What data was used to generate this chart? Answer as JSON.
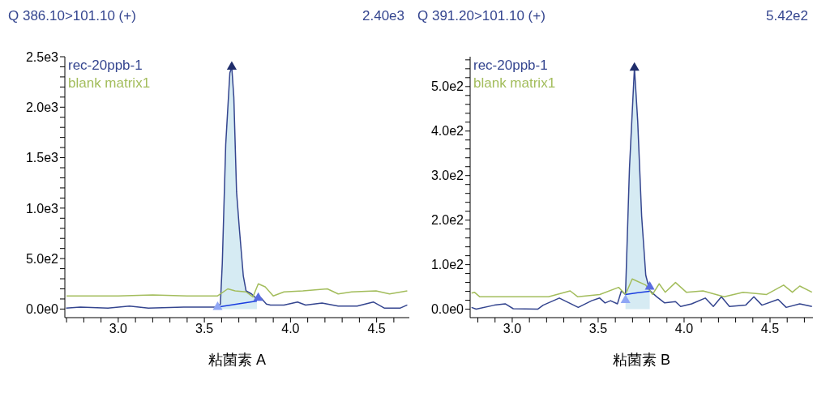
{
  "chart_data": [
    {
      "type": "line",
      "title": "Q 386.10>101.10 (+)",
      "annotations": [
        "2.40e3"
      ],
      "xlabel": "粘菌素 A",
      "xlim": [
        2.69,
        4.69
      ],
      "xticks": [
        {
          "value": 2.7,
          "label": null
        },
        {
          "value": 2.8,
          "label": null
        },
        {
          "value": 2.9,
          "label": null
        },
        {
          "value": 3.0,
          "label": "3.0"
        },
        {
          "value": 3.1,
          "label": null
        },
        {
          "value": 3.2,
          "label": null
        },
        {
          "value": 3.3,
          "label": null
        },
        {
          "value": 3.4,
          "label": null
        },
        {
          "value": 3.5,
          "label": "3.5"
        },
        {
          "value": 3.6,
          "label": null
        },
        {
          "value": 3.7,
          "label": null
        },
        {
          "value": 3.8,
          "label": null
        },
        {
          "value": 3.9,
          "label": null
        },
        {
          "value": 4.0,
          "label": "4.0"
        },
        {
          "value": 4.1,
          "label": null
        },
        {
          "value": 4.2,
          "label": null
        },
        {
          "value": 4.3,
          "label": null
        },
        {
          "value": 4.4,
          "label": null
        },
        {
          "value": 4.5,
          "label": "4.5"
        },
        {
          "value": 4.6,
          "label": null
        }
      ],
      "ylim": [
        -85,
        2500
      ],
      "yticks": [
        {
          "value": 0,
          "label": "0.0e0"
        },
        {
          "value": 100,
          "label": null
        },
        {
          "value": 200,
          "label": null
        },
        {
          "value": 300,
          "label": null
        },
        {
          "value": 400,
          "label": null
        },
        {
          "value": 500,
          "label": "5.0e2"
        },
        {
          "value": 600,
          "label": null
        },
        {
          "value": 700,
          "label": null
        },
        {
          "value": 800,
          "label": null
        },
        {
          "value": 900,
          "label": null
        },
        {
          "value": 1000,
          "label": "1.0e3"
        },
        {
          "value": 1100,
          "label": null
        },
        {
          "value": 1200,
          "label": null
        },
        {
          "value": 1300,
          "label": null
        },
        {
          "value": 1400,
          "label": null
        },
        {
          "value": 1500,
          "label": "1.5e3"
        },
        {
          "value": 1600,
          "label": null
        },
        {
          "value": 1700,
          "label": null
        },
        {
          "value": 1800,
          "label": null
        },
        {
          "value": 1900,
          "label": null
        },
        {
          "value": 2000,
          "label": "2.0e3"
        },
        {
          "value": 2100,
          "label": null
        },
        {
          "value": 2200,
          "label": null
        },
        {
          "value": 2300,
          "label": null
        },
        {
          "value": 2400,
          "label": null
        },
        {
          "value": 2500,
          "label": "2.5e3"
        }
      ],
      "legend": "top left",
      "marker": "none",
      "series": [
        {
          "type": "area",
          "color": "#d6ebf3",
          "x": [
            3.577,
            3.593,
            3.604,
            3.624,
            3.648,
            3.659,
            3.671,
            3.687,
            3.703,
            3.726,
            3.742,
            3.774,
            3.805
          ],
          "values": [
            20,
            50,
            450,
            1630,
            2340,
            2400,
            2100,
            1160,
            800,
            330,
            180,
            150,
            100
          ]
        },
        {
          "name": "rec-20ppb-1",
          "color": "#34458f",
          "x": [
            2.697,
            2.78,
            2.94,
            3.065,
            3.175,
            3.38,
            3.506,
            3.577,
            3.593,
            3.604,
            3.624,
            3.648,
            3.659,
            3.671,
            3.687,
            3.703,
            3.726,
            3.742,
            3.774,
            3.805,
            3.829,
            3.86,
            3.884,
            3.962,
            4.041,
            4.088,
            4.183,
            4.277,
            4.387,
            4.481,
            4.544,
            4.638,
            4.678
          ],
          "values": [
            10,
            20,
            10,
            30,
            10,
            20,
            20,
            20,
            50,
            450,
            1630,
            2340,
            2400,
            2100,
            1160,
            800,
            330,
            180,
            150,
            100,
            110,
            50,
            40,
            40,
            70,
            40,
            60,
            30,
            30,
            70,
            10,
            10,
            40
          ]
        },
        {
          "name": "blank matrix1",
          "color": "#a3bd5c",
          "x": [
            2.7,
            2.85,
            3.0,
            3.2,
            3.4,
            3.577,
            3.636,
            3.679,
            3.742,
            3.782,
            3.813,
            3.853,
            3.9,
            3.962,
            4.072,
            4.214,
            4.277,
            4.355,
            4.497,
            4.575,
            4.678
          ],
          "values": [
            130,
            130,
            130,
            140,
            130,
            130,
            200,
            180,
            170,
            120,
            250,
            220,
            130,
            170,
            180,
            200,
            150,
            170,
            180,
            150,
            180
          ]
        },
        {
          "type": "scatter",
          "marker": "triangle",
          "x": [
            3.659,
            3.577,
            3.813
          ],
          "values": [
            2400,
            20,
            110
          ],
          "colors": [
            "#1f2d6b",
            "#8fa6f5",
            "#5a6de0"
          ]
        },
        {
          "type": "line",
          "color": "#1a3de0",
          "x": [
            3.577,
            3.69,
            3.805
          ],
          "values": [
            20,
            50,
            80
          ]
        }
      ]
    },
    {
      "type": "line",
      "title": "Q 391.20>101.10 (+)",
      "annotations": [
        "5.42e2"
      ],
      "xlabel": "粘菌素 B",
      "xlim": [
        2.755,
        4.75
      ],
      "xticks": [
        {
          "value": 2.8,
          "label": null
        },
        {
          "value": 2.9,
          "label": null
        },
        {
          "value": 3.0,
          "label": "3.0"
        },
        {
          "value": 3.1,
          "label": null
        },
        {
          "value": 3.2,
          "label": null
        },
        {
          "value": 3.3,
          "label": null
        },
        {
          "value": 3.4,
          "label": null
        },
        {
          "value": 3.5,
          "label": "3.5"
        },
        {
          "value": 3.6,
          "label": null
        },
        {
          "value": 3.7,
          "label": null
        },
        {
          "value": 3.8,
          "label": null
        },
        {
          "value": 3.9,
          "label": null
        },
        {
          "value": 4.0,
          "label": "4.0"
        },
        {
          "value": 4.1,
          "label": null
        },
        {
          "value": 4.2,
          "label": null
        },
        {
          "value": 4.3,
          "label": null
        },
        {
          "value": 4.4,
          "label": null
        },
        {
          "value": 4.5,
          "label": "4.5"
        },
        {
          "value": 4.6,
          "label": null
        },
        {
          "value": 4.7,
          "label": null
        }
      ],
      "ylim": [
        -19,
        567
      ],
      "yticks": [
        {
          "value": 0,
          "label": "0.0e0"
        },
        {
          "value": 20,
          "label": null
        },
        {
          "value": 40,
          "label": null
        },
        {
          "value": 60,
          "label": null
        },
        {
          "value": 80,
          "label": null
        },
        {
          "value": 100,
          "label": "1.0e2"
        },
        {
          "value": 120,
          "label": null
        },
        {
          "value": 140,
          "label": null
        },
        {
          "value": 160,
          "label": null
        },
        {
          "value": 180,
          "label": null
        },
        {
          "value": 200,
          "label": "2.0e2"
        },
        {
          "value": 220,
          "label": null
        },
        {
          "value": 240,
          "label": null
        },
        {
          "value": 260,
          "label": null
        },
        {
          "value": 280,
          "label": null
        },
        {
          "value": 300,
          "label": "3.0e2"
        },
        {
          "value": 320,
          "label": null
        },
        {
          "value": 340,
          "label": null
        },
        {
          "value": 360,
          "label": null
        },
        {
          "value": 380,
          "label": null
        },
        {
          "value": 400,
          "label": "4.0e2"
        },
        {
          "value": 420,
          "label": null
        },
        {
          "value": 440,
          "label": null
        },
        {
          "value": 460,
          "label": null
        },
        {
          "value": 480,
          "label": null
        },
        {
          "value": 500,
          "label": "5.0e2"
        },
        {
          "value": 520,
          "label": null
        },
        {
          "value": 540,
          "label": null
        },
        {
          "value": 560,
          "label": null
        }
      ],
      "legend": "top left",
      "marker": "none",
      "series": [
        {
          "type": "area",
          "color": "#d6ebf3",
          "x": [
            3.659,
            3.682,
            3.711,
            3.73,
            3.753,
            3.777,
            3.8
          ],
          "values": [
            33,
            316,
            542,
            423,
            209,
            76,
            42
          ]
        },
        {
          "name": "rec-20ppb-1",
          "color": "#34458f",
          "x": [
            2.763,
            2.79,
            2.896,
            2.959,
            3.006,
            3.148,
            3.18,
            3.274,
            3.384,
            3.462,
            3.509,
            3.54,
            3.572,
            3.612,
            3.635,
            3.659,
            3.682,
            3.711,
            3.73,
            3.753,
            3.777,
            3.8,
            3.84,
            3.887,
            3.95,
            3.98,
            4.044,
            4.123,
            4.17,
            4.217,
            4.264,
            4.358,
            4.406,
            4.453,
            4.547,
            4.594,
            4.673,
            4.744
          ],
          "values": [
            4,
            0,
            9,
            12,
            1,
            0,
            9,
            25,
            4,
            19,
            25,
            14,
            19,
            12,
            41,
            33,
            316,
            542,
            423,
            209,
            76,
            42,
            28,
            14,
            17,
            6,
            12,
            25,
            6,
            28,
            6,
            9,
            28,
            9,
            22,
            4,
            12,
            6
          ]
        },
        {
          "name": "blank matrix1",
          "color": "#a3bd5c",
          "x": [
            2.763,
            2.78,
            2.81,
            3.211,
            3.337,
            3.38,
            3.509,
            3.619,
            3.659,
            3.698,
            3.777,
            3.816,
            3.855,
            3.89,
            3.95,
            4.013,
            4.11,
            4.233,
            4.343,
            4.48,
            4.579,
            4.63,
            4.673,
            4.744
          ],
          "values": [
            36,
            38,
            28,
            28,
            41,
            28,
            33,
            49,
            33,
            68,
            54,
            33,
            57,
            38,
            60,
            38,
            41,
            28,
            38,
            33,
            54,
            38,
            52,
            38
          ]
        },
        {
          "type": "scatter",
          "marker": "triangle",
          "x": [
            3.711,
            3.659,
            3.8
          ],
          "values": [
            542,
            20,
            50
          ],
          "colors": [
            "#1f2d6b",
            "#8fa6f5",
            "#5a6de0"
          ]
        },
        {
          "type": "line",
          "color": "#1a3de0",
          "x": [
            3.659,
            3.73,
            3.8
          ],
          "values": [
            33,
            37,
            40
          ]
        }
      ]
    }
  ]
}
